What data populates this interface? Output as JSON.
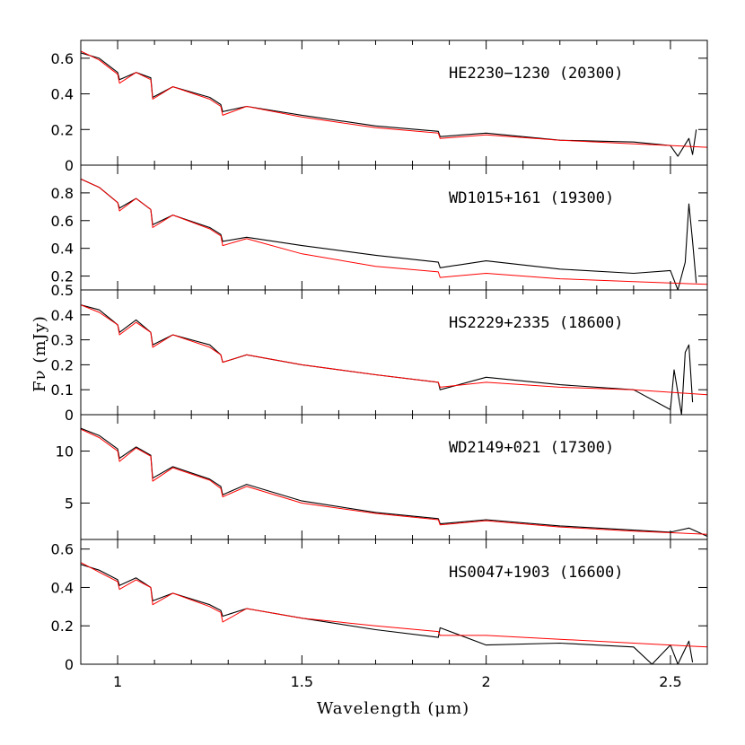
{
  "figure": {
    "xlabel": "Wavelength (μm)",
    "ylabel": "Fν (mJy)",
    "xlim": [
      0.9,
      2.6
    ],
    "xticks_major": [
      1,
      1.5,
      2,
      2.5
    ],
    "xtick_labels": [
      "1",
      "1.5",
      "2",
      "2.5"
    ],
    "observed_color": "#000000",
    "model_color": "#ff0000"
  },
  "chart_data": [
    {
      "type": "line",
      "label": "HE2230−1230 (20300)",
      "ylim": [
        0,
        0.7
      ],
      "yticks": [
        0,
        0.2,
        0.4,
        0.6
      ],
      "ytick_labels": [
        "0",
        "0.2",
        "0.4",
        "0.6"
      ],
      "series": [
        {
          "name": "observed",
          "style": "black",
          "x": [
            0.9,
            0.95,
            1.0,
            1.005,
            1.05,
            1.09,
            1.095,
            1.15,
            1.25,
            1.28,
            1.285,
            1.35,
            1.5,
            1.7,
            1.87,
            1.875,
            2.0,
            2.2,
            2.4,
            2.5,
            2.52,
            2.55,
            2.56,
            2.57
          ],
          "y": [
            0.63,
            0.6,
            0.52,
            0.48,
            0.52,
            0.49,
            0.38,
            0.44,
            0.38,
            0.34,
            0.3,
            0.33,
            0.28,
            0.22,
            0.19,
            0.16,
            0.18,
            0.14,
            0.13,
            0.11,
            0.05,
            0.15,
            0.06,
            0.2
          ]
        },
        {
          "name": "model",
          "style": "red",
          "x": [
            0.9,
            0.95,
            1.0,
            1.005,
            1.05,
            1.09,
            1.095,
            1.15,
            1.25,
            1.28,
            1.285,
            1.35,
            1.5,
            1.7,
            1.87,
            1.875,
            2.0,
            2.2,
            2.4,
            2.6
          ],
          "y": [
            0.64,
            0.59,
            0.51,
            0.46,
            0.52,
            0.48,
            0.37,
            0.44,
            0.37,
            0.33,
            0.28,
            0.33,
            0.27,
            0.21,
            0.18,
            0.15,
            0.17,
            0.14,
            0.12,
            0.1
          ]
        }
      ]
    },
    {
      "type": "line",
      "label": "WD1015+161 (19300)",
      "ylim": [
        0.1,
        1.0
      ],
      "yticks": [
        0.2,
        0.4,
        0.6,
        0.8
      ],
      "ytick_labels": [
        "0.2",
        "0.4",
        "0.6",
        "0.8"
      ],
      "series": [
        {
          "name": "observed",
          "style": "black",
          "x": [
            0.9,
            0.95,
            1.0,
            1.005,
            1.05,
            1.09,
            1.095,
            1.15,
            1.25,
            1.28,
            1.285,
            1.35,
            1.5,
            1.7,
            1.87,
            1.875,
            2.0,
            2.2,
            2.4,
            2.5,
            2.52,
            2.54,
            2.55,
            2.56,
            2.57
          ],
          "y": [
            0.9,
            0.84,
            0.73,
            0.69,
            0.76,
            0.68,
            0.57,
            0.64,
            0.55,
            0.5,
            0.45,
            0.48,
            0.42,
            0.35,
            0.3,
            0.26,
            0.31,
            0.25,
            0.22,
            0.24,
            0.1,
            0.3,
            0.72,
            0.45,
            0.15
          ]
        },
        {
          "name": "model",
          "style": "red",
          "x": [
            0.9,
            0.95,
            1.0,
            1.005,
            1.05,
            1.09,
            1.095,
            1.15,
            1.25,
            1.28,
            1.285,
            1.35,
            1.5,
            1.7,
            1.87,
            1.875,
            2.0,
            2.2,
            2.4,
            2.6
          ],
          "y": [
            0.9,
            0.84,
            0.73,
            0.67,
            0.76,
            0.68,
            0.55,
            0.64,
            0.54,
            0.49,
            0.42,
            0.47,
            0.36,
            0.27,
            0.23,
            0.19,
            0.22,
            0.18,
            0.16,
            0.14
          ]
        }
      ]
    },
    {
      "type": "line",
      "label": "HS2229+2335 (18600)",
      "ylim": [
        0,
        0.5
      ],
      "yticks": [
        0,
        0.1,
        0.2,
        0.3,
        0.4,
        0.5
      ],
      "ytick_labels": [
        "0",
        "0.1",
        "0.2",
        "0.3",
        "0.4",
        "0.5"
      ],
      "series": [
        {
          "name": "observed",
          "style": "black",
          "x": [
            0.9,
            0.95,
            1.0,
            1.005,
            1.05,
            1.09,
            1.095,
            1.15,
            1.25,
            1.28,
            1.285,
            1.35,
            1.5,
            1.7,
            1.87,
            1.875,
            2.0,
            2.2,
            2.4,
            2.5,
            2.51,
            2.53,
            2.54,
            2.55,
            2.56
          ],
          "y": [
            0.44,
            0.42,
            0.36,
            0.33,
            0.38,
            0.33,
            0.28,
            0.32,
            0.28,
            0.24,
            0.21,
            0.24,
            0.2,
            0.16,
            0.13,
            0.1,
            0.15,
            0.12,
            0.1,
            0.02,
            0.18,
            0.0,
            0.25,
            0.28,
            0.05
          ]
        },
        {
          "name": "model",
          "style": "red",
          "x": [
            0.9,
            0.95,
            1.0,
            1.005,
            1.05,
            1.09,
            1.095,
            1.15,
            1.25,
            1.28,
            1.285,
            1.35,
            1.5,
            1.7,
            1.87,
            1.875,
            2.0,
            2.2,
            2.4,
            2.6
          ],
          "y": [
            0.44,
            0.41,
            0.36,
            0.32,
            0.37,
            0.33,
            0.27,
            0.32,
            0.27,
            0.24,
            0.21,
            0.24,
            0.2,
            0.16,
            0.13,
            0.11,
            0.13,
            0.11,
            0.1,
            0.08
          ]
        }
      ]
    },
    {
      "type": "line",
      "label": "WD2149+021 (17300)",
      "ylim": [
        1.5,
        13.5
      ],
      "yticks": [
        5,
        10
      ],
      "ytick_labels": [
        "5",
        "10"
      ],
      "series": [
        {
          "name": "observed",
          "style": "black",
          "x": [
            0.9,
            0.95,
            1.0,
            1.005,
            1.05,
            1.09,
            1.095,
            1.15,
            1.25,
            1.28,
            1.285,
            1.35,
            1.5,
            1.7,
            1.87,
            1.875,
            2.0,
            2.2,
            2.4,
            2.5,
            2.55,
            2.6
          ],
          "y": [
            12.2,
            11.5,
            10.2,
            9.3,
            10.4,
            9.6,
            7.4,
            8.5,
            7.3,
            6.6,
            5.8,
            6.8,
            5.2,
            4.1,
            3.5,
            3.0,
            3.4,
            2.8,
            2.4,
            2.2,
            2.6,
            1.8
          ]
        },
        {
          "name": "model",
          "style": "red",
          "x": [
            0.9,
            0.95,
            1.0,
            1.005,
            1.05,
            1.09,
            1.095,
            1.15,
            1.25,
            1.28,
            1.285,
            1.35,
            1.5,
            1.7,
            1.87,
            1.875,
            2.0,
            2.2,
            2.4,
            2.6
          ],
          "y": [
            12.1,
            11.3,
            10.0,
            9.0,
            10.3,
            9.5,
            7.1,
            8.4,
            7.2,
            6.4,
            5.6,
            6.6,
            5.0,
            4.0,
            3.4,
            2.9,
            3.3,
            2.7,
            2.3,
            2.0
          ]
        }
      ]
    },
    {
      "type": "line",
      "label": "HS0047+1903 (16600)",
      "ylim": [
        0,
        0.65
      ],
      "yticks": [
        0,
        0.2,
        0.4,
        0.6
      ],
      "ytick_labels": [
        "0",
        "0.2",
        "0.4",
        "0.6"
      ],
      "series": [
        {
          "name": "observed",
          "style": "black",
          "x": [
            0.9,
            0.95,
            1.0,
            1.005,
            1.05,
            1.09,
            1.095,
            1.15,
            1.25,
            1.28,
            1.285,
            1.35,
            1.5,
            1.7,
            1.87,
            1.875,
            2.0,
            2.2,
            2.4,
            2.45,
            2.5,
            2.52,
            2.55,
            2.56
          ],
          "y": [
            0.52,
            0.49,
            0.44,
            0.41,
            0.45,
            0.4,
            0.33,
            0.37,
            0.31,
            0.28,
            0.25,
            0.29,
            0.24,
            0.18,
            0.14,
            0.19,
            0.1,
            0.11,
            0.09,
            0.0,
            0.1,
            0.0,
            0.12,
            0.01
          ]
        },
        {
          "name": "model",
          "style": "red",
          "x": [
            0.9,
            0.95,
            1.0,
            1.005,
            1.05,
            1.09,
            1.095,
            1.15,
            1.25,
            1.28,
            1.285,
            1.35,
            1.5,
            1.7,
            1.87,
            1.875,
            2.0,
            2.2,
            2.4,
            2.6
          ],
          "y": [
            0.53,
            0.48,
            0.43,
            0.39,
            0.44,
            0.4,
            0.31,
            0.37,
            0.3,
            0.27,
            0.22,
            0.29,
            0.24,
            0.2,
            0.17,
            0.15,
            0.15,
            0.13,
            0.11,
            0.09
          ]
        }
      ]
    }
  ]
}
